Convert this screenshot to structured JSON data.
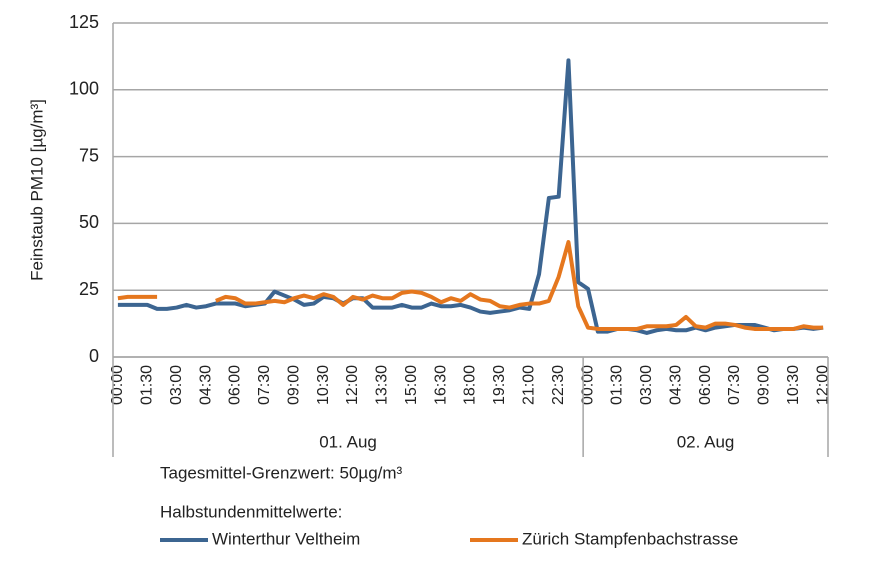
{
  "chart_data": {
    "type": "line",
    "y_label": "Feinstaub PM10 [µg/m³]",
    "ylim": [
      0,
      125
    ],
    "yticks": [
      0,
      25,
      50,
      75,
      100,
      125
    ],
    "grid": true,
    "categories": [
      "00:00",
      null,
      null,
      "01:30",
      null,
      null,
      "03:00",
      null,
      null,
      "04:30",
      null,
      null,
      "06:00",
      null,
      null,
      "07:30",
      null,
      null,
      "09:00",
      null,
      null,
      "10:30",
      null,
      null,
      "12:00",
      null,
      null,
      "13:30",
      null,
      null,
      "15:00",
      null,
      null,
      "16:30",
      null,
      null,
      "18:00",
      null,
      null,
      "19:30",
      null,
      null,
      "21:00",
      null,
      null,
      "22:30",
      null,
      null,
      "00:00",
      null,
      null,
      "01:30",
      null,
      null,
      "03:00",
      null,
      null,
      "04:30",
      null,
      null,
      "06:00",
      null,
      null,
      "07:30",
      null,
      null,
      "09:00",
      null,
      null,
      "10:30",
      null,
      null,
      "12:00"
    ],
    "groups": [
      "01. Aug",
      "02. Aug"
    ],
    "annotation": "Tagesmittel-Grenzwert: 50µg/m³",
    "legend_title": "Halbstundenmittelwerte:",
    "series": [
      {
        "name": "Winterthur Veltheim",
        "color": "#3c6591",
        "values": [
          19.5,
          19.5,
          19.5,
          19.5,
          18,
          18,
          18.5,
          19.5,
          18.5,
          19,
          20,
          20,
          20,
          19,
          19.5,
          20,
          24.5,
          23,
          21.5,
          19.5,
          20,
          22.5,
          22,
          20,
          22,
          22,
          18.5,
          18.5,
          18.5,
          19.5,
          18.5,
          18.5,
          20,
          19,
          19,
          19.5,
          18.5,
          17,
          16.5,
          17,
          17.5,
          18.5,
          18,
          31,
          59.5,
          60,
          111,
          28,
          25.5,
          9.5,
          9.5,
          10.5,
          10.5,
          10,
          9,
          10,
          10.5,
          10,
          10,
          11,
          10,
          11,
          11.5,
          12,
          12,
          12,
          11,
          10,
          10.5,
          10.5,
          11,
          10.5,
          11
        ]
      },
      {
        "name": "Zürich Stampfenbachstrasse",
        "color": "#e5771e",
        "values": [
          22,
          22.5,
          22.5,
          22.5,
          22.5,
          null,
          null,
          null,
          null,
          null,
          21,
          22.5,
          22,
          20,
          20,
          20.5,
          21,
          20.5,
          22,
          23,
          22,
          23.5,
          22.5,
          19.5,
          22.5,
          21.5,
          23,
          22,
          22,
          24,
          24.5,
          24,
          22.5,
          20.5,
          22,
          21,
          23.5,
          21.5,
          21,
          19,
          18.5,
          19.5,
          20,
          20,
          21,
          30,
          43,
          19,
          11,
          10.5,
          10.5,
          10.5,
          10.5,
          10.5,
          11.5,
          11.5,
          11.5,
          12,
          15,
          11.5,
          11,
          12.5,
          12.5,
          12,
          11,
          10.5,
          10.5,
          10.5,
          10.5,
          10.5,
          11.5,
          11,
          11
        ]
      }
    ]
  }
}
